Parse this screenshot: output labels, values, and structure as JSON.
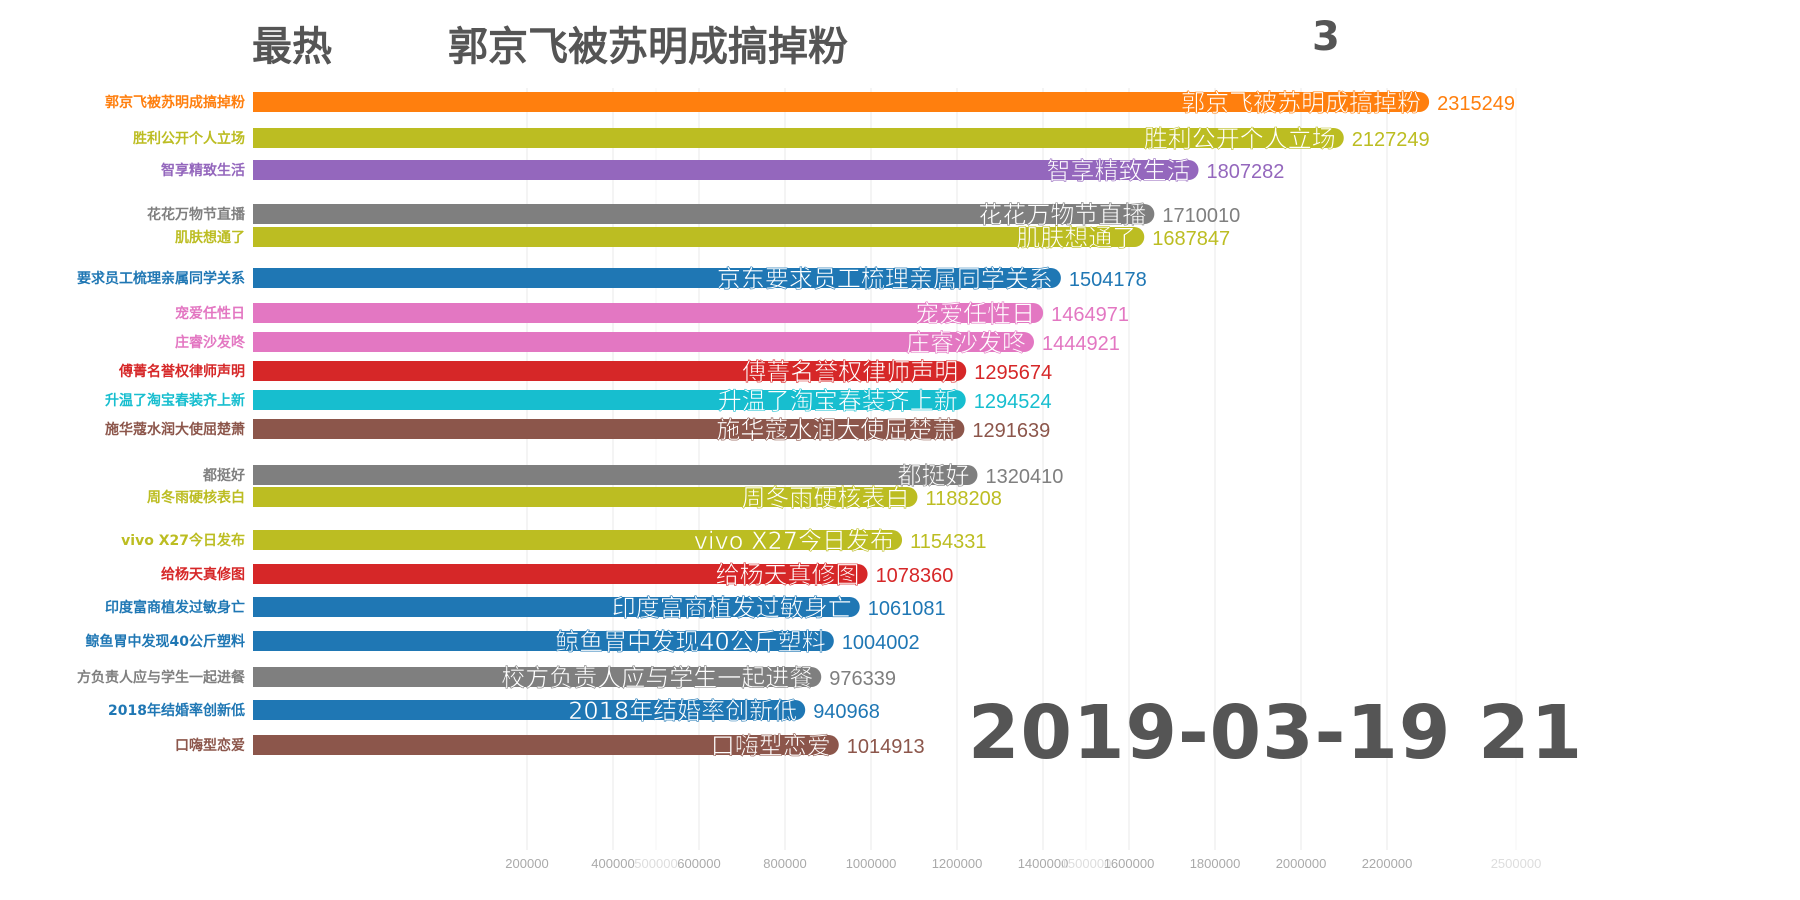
{
  "header": {
    "label": "最热",
    "top_item": "郭京飞被苏明成搞掉粉",
    "counter": "3"
  },
  "date_label": "2019-03-19 21",
  "chart_data": {
    "type": "bar",
    "orientation": "horizontal",
    "title": "",
    "xlim": [
      0,
      2500000
    ],
    "grid": true,
    "x_ticks": [
      200000,
      400000,
      500000,
      600000,
      800000,
      1000000,
      1200000,
      1400000,
      1500000,
      1600000,
      1800000,
      2000000,
      2200000,
      2500000
    ],
    "bars": [
      {
        "axis_label": "郭京飞被苏明成搞掉粉",
        "bar_label": "郭京飞被苏明成搞掉粉",
        "value": 2315249,
        "color": "#ff7f0e"
      },
      {
        "axis_label": "胜利公开个人立场",
        "bar_label": "胜利公开个人立场",
        "value": 2127249,
        "color": "#bcbd22"
      },
      {
        "axis_label": "智享精致生活",
        "bar_label": "智享精致生活",
        "value": 1807282,
        "color": "#9467bd"
      },
      {
        "axis_label": "花花万物节直播",
        "bar_label": "花花万物节直播",
        "value": 1710010,
        "color": "#7f7f7f"
      },
      {
        "axis_label": "肌肤想通了",
        "bar_label": "肌肤想通了",
        "value": 1687847,
        "color": "#bcbd22"
      },
      {
        "axis_label": "要求员工梳理亲属同学关系",
        "bar_label": "京东要求员工梳理亲属同学关系",
        "value": 1504178,
        "color": "#1f77b4"
      },
      {
        "axis_label": "宠爱任性日",
        "bar_label": "宠爱任性日",
        "value": 1464971,
        "color": "#e377c2"
      },
      {
        "axis_label": "庄睿沙发咚",
        "bar_label": "庄睿沙发咚",
        "value": 1444921,
        "color": "#e377c2"
      },
      {
        "axis_label": "傅菁名誉权律师声明",
        "bar_label": "傅菁名誉权律师声明",
        "value": 1295674,
        "color": "#d62728"
      },
      {
        "axis_label": "升温了淘宝春装齐上新",
        "bar_label": "升温了淘宝春装齐上新",
        "value": 1294524,
        "color": "#17becf"
      },
      {
        "axis_label": "施华蔻水润大使屈楚萧",
        "bar_label": "施华蔻水润大使屈楚萧",
        "value": 1291639,
        "color": "#8c564b"
      },
      {
        "axis_label": "都挺好",
        "bar_label": "都挺好",
        "value": 1320410,
        "color": "#7f7f7f"
      },
      {
        "axis_label": "周冬雨硬核表白",
        "bar_label": "周冬雨硬核表白",
        "value": 1188208,
        "color": "#bcbd22"
      },
      {
        "axis_label": "vivo X27今日发布",
        "bar_label": "vivo X27今日发布",
        "value": 1154331,
        "color": "#bcbd22"
      },
      {
        "axis_label": "给杨天真修图",
        "bar_label": "给杨天真修图",
        "value": 1078360,
        "color": "#d62728"
      },
      {
        "axis_label": "印度富商植发过敏身亡",
        "bar_label": "印度富商植发过敏身亡",
        "value": 1061081,
        "color": "#1f77b4"
      },
      {
        "axis_label": "鲸鱼胃中发现40公斤塑料",
        "bar_label": "鲸鱼胃中发现40公斤塑料",
        "value": 1004002,
        "color": "#1f77b4"
      },
      {
        "axis_label": "方负责人应与学生一起进餐",
        "bar_label": "校方负责人应与学生一起进餐",
        "value": 976339,
        "color": "#7f7f7f"
      },
      {
        "axis_label": "2018年结婚率创新低",
        "bar_label": "2018年结婚率创新低",
        "value": 940968,
        "color": "#1f77b4"
      },
      {
        "axis_label": "口嗨型恋爱",
        "bar_label": "口嗨型恋爱",
        "value": 1014913,
        "color": "#8c564b"
      }
    ]
  }
}
